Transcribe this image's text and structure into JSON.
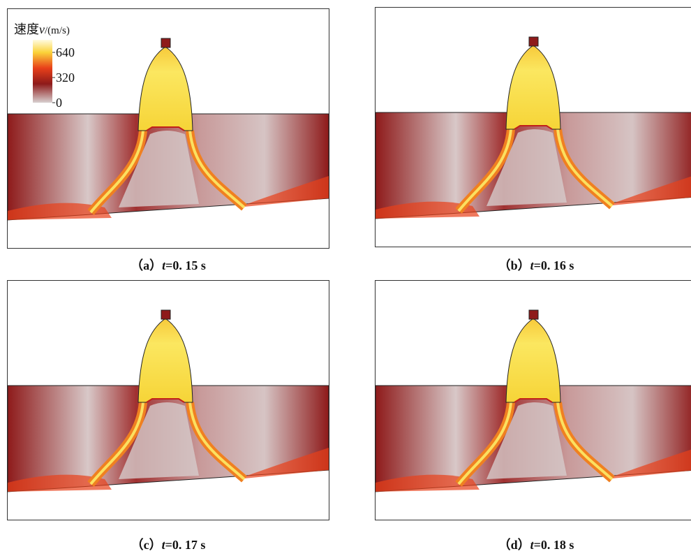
{
  "colorbar": {
    "title": {
      "prefix": "速度",
      "var": "v",
      "unit": "/(m/s)"
    },
    "ticks": [
      640,
      320,
      0
    ],
    "range": [
      0,
      800
    ]
  },
  "panels": [
    {
      "label": "（a）",
      "var": "t",
      "eq": "=0. 15 s"
    },
    {
      "label": "（b）",
      "var": "t",
      "eq": "=0. 16 s"
    },
    {
      "label": "（c）",
      "var": "t",
      "eq": "=0. 17 s"
    },
    {
      "label": "（d）",
      "var": "t",
      "eq": "=0. 18 s"
    }
  ]
}
